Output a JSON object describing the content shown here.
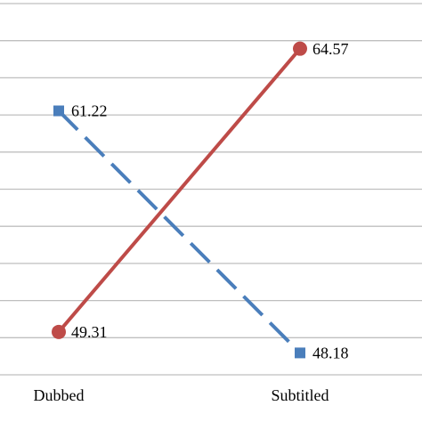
{
  "chart_data": {
    "type": "line",
    "categories": [
      "Dubbed",
      "Subtitled"
    ],
    "series": [
      {
        "color": "#4a7ebb",
        "dash": true,
        "marker": "square",
        "values": [
          61.22,
          48.18
        ]
      },
      {
        "color": "#be4b48",
        "dash": false,
        "marker": "circle",
        "values": [
          49.31,
          64.57
        ]
      }
    ],
    "ylim": [
      47,
      67
    ],
    "yticks": [
      47,
      49,
      51,
      53,
      55,
      57,
      59,
      61,
      63,
      65,
      67
    ],
    "grid": true
  }
}
